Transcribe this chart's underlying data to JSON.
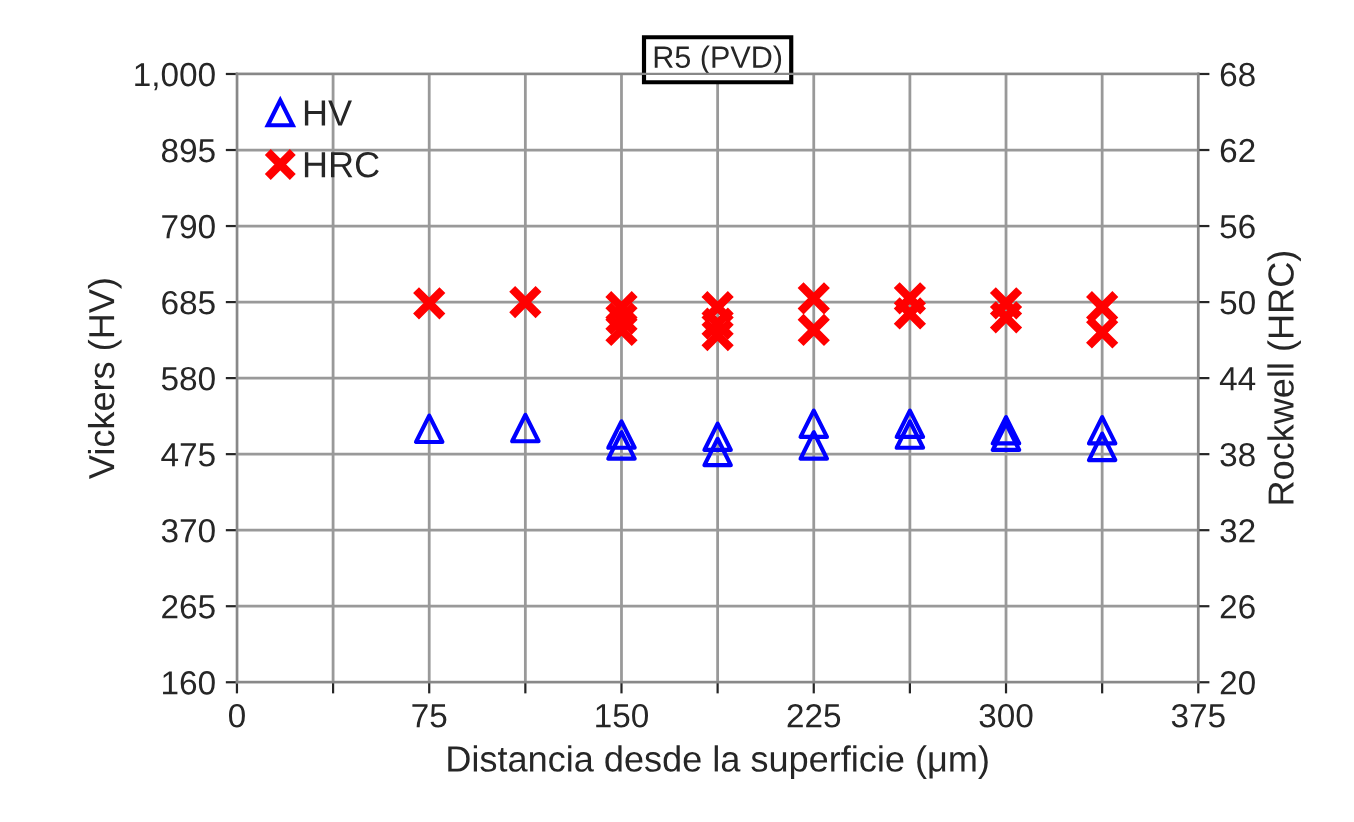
{
  "chart_data": {
    "type": "scatter",
    "title": "R5 (PVD)",
    "xlabel": "Distancia desde la superficie (μm)",
    "ylabel": "Vickers (HV)",
    "y2label": "Rockwell (HRC)",
    "xlim": [
      0,
      375
    ],
    "xticks": [
      0,
      {
        "value": 37.5,
        "label": null
      },
      75,
      {
        "value": 112.5,
        "label": null
      },
      150,
      {
        "value": 187.5,
        "label": null
      },
      225,
      {
        "value": 262.5,
        "label": null
      },
      300,
      {
        "value": 337.5,
        "label": null
      },
      375
    ],
    "ylim": [
      160,
      1000
    ],
    "yticks": [
      160,
      265,
      370,
      475,
      580,
      685,
      790,
      895,
      {
        "value": 1000,
        "label": "1,000"
      }
    ],
    "y2lim": [
      20,
      68
    ],
    "y2ticks": [
      20,
      26,
      32,
      38,
      44,
      50,
      56,
      62,
      68
    ],
    "grid": true,
    "legend": "top left",
    "series": [
      {
        "name": "HV",
        "color": "#0000ff",
        "marker": "triangle",
        "x": [
          75,
          112.5,
          150,
          150,
          187.5,
          187.5,
          225,
          225,
          262.5,
          262.5,
          300,
          300,
          337.5,
          337.5
        ],
        "values": [
          510,
          511,
          502,
          487,
          499,
          478,
          517,
          487,
          517,
          502,
          508,
          499,
          508,
          485
        ]
      },
      {
        "name": "HRC",
        "color": "#ff0000",
        "marker": "cross",
        "axis": "y2",
        "x": [
          75,
          112.5,
          150,
          150,
          150,
          187.5,
          187.5,
          187.5,
          225,
          225,
          262.5,
          262.5,
          300,
          300,
          337.5,
          337.5
        ],
        "values": [
          49.9,
          50.0,
          49.6,
          48.7,
          47.8,
          49.6,
          48.3,
          47.4,
          50.3,
          47.8,
          50.3,
          49.1,
          49.9,
          48.8,
          49.6,
          47.6
        ]
      }
    ]
  }
}
